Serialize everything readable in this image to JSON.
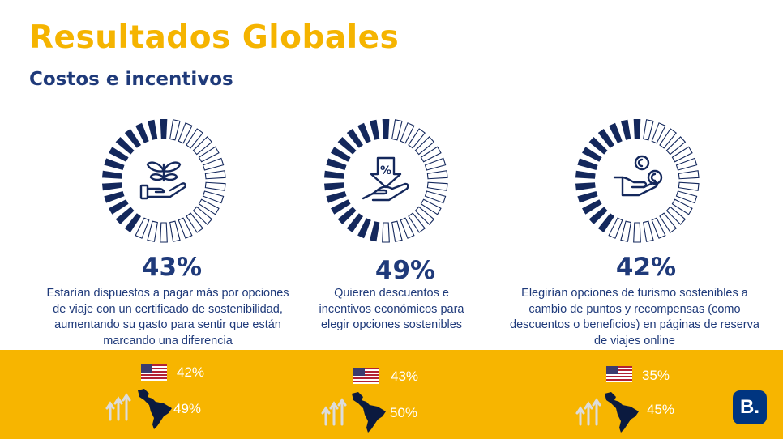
{
  "header": {
    "title": "Resultados Globales",
    "subtitle": "Costos e incentivos"
  },
  "colors": {
    "brand_yellow": "#f5b400",
    "band_yellow": "#f7b500",
    "navy": "#1f3a7a",
    "ring_filled": "#14285c",
    "ring_empty_outline": "#14285c",
    "logo_blue": "#003580",
    "comparison_text": "#ffffff"
  },
  "chart_data": [
    {
      "type": "radial-progress",
      "icon": "plant-in-hand-icon",
      "value_percent": 43,
      "label": "43%",
      "description": "Estarían dispuestos a pagar más por opciones de viaje con un certificado de sostenibilidad, aumentando su gasto para sentir que están marcando una diferencia",
      "comparisons": [
        {
          "region": "us-flag-icon",
          "label": "42%",
          "value": 42
        },
        {
          "region": "latin-america-map-icon",
          "label": "49%",
          "value": 49
        }
      ]
    },
    {
      "type": "radial-progress",
      "icon": "discount-in-hand-icon",
      "value_percent": 49,
      "label": "49%",
      "description": "Quieren descuentos e incentivos económicos para elegir opciones sostenibles",
      "comparisons": [
        {
          "region": "us-flag-icon",
          "label": "43%",
          "value": 43
        },
        {
          "region": "latin-america-map-icon",
          "label": "50%",
          "value": 50
        }
      ]
    },
    {
      "type": "radial-progress",
      "icon": "coins-in-hand-icon",
      "value_percent": 42,
      "label": "42%",
      "description": "Elegirían opciones de turismo sostenibles a cambio de puntos y recompensas (como descuentos o beneficios) en páginas de reserva de viajes online",
      "comparisons": [
        {
          "region": "us-flag-icon",
          "label": "35%",
          "value": 35
        },
        {
          "region": "latin-america-map-icon",
          "label": "45%",
          "value": 45
        }
      ]
    }
  ],
  "logo": {
    "text": "B."
  }
}
